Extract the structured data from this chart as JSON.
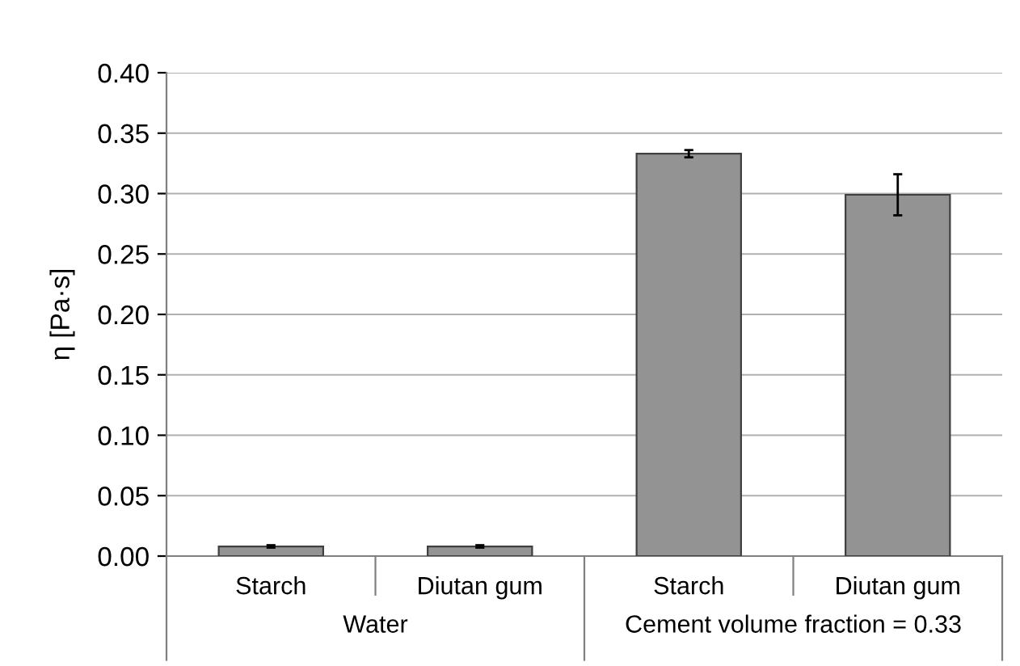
{
  "chart_data": {
    "type": "bar",
    "ylabel": "η [Pa·s]",
    "categories": [
      "Starch",
      "Diutan gum",
      "Starch",
      "Diutan gum"
    ],
    "values": [
      0.008,
      0.008,
      0.333,
      0.299
    ],
    "errors": [
      0.001,
      0.001,
      0.003,
      0.017
    ],
    "color": "#939393",
    "ylim": [
      0,
      0.4
    ],
    "yticks": [
      {
        "value": 0,
        "label": "0.00"
      },
      {
        "value": 0.05,
        "label": "0.05"
      },
      {
        "value": 0.1,
        "label": "0.10"
      },
      {
        "value": 0.15,
        "label": "0.15"
      },
      {
        "value": 0.2,
        "label": "0.20"
      },
      {
        "value": 0.25,
        "label": "0.25"
      },
      {
        "value": 0.3,
        "label": "0.30"
      },
      {
        "value": 0.35,
        "label": "0.35"
      },
      {
        "value": 0.4,
        "label": "0.40"
      }
    ],
    "grid": "y",
    "annotations": [
      "Water",
      "Cement volume fraction = 0.33"
    ]
  }
}
